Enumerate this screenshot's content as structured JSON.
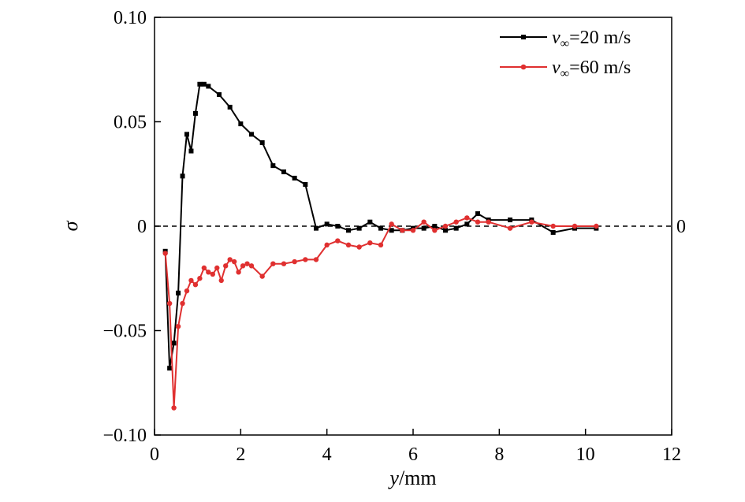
{
  "chart_data": {
    "type": "line",
    "xlabel_var": "y",
    "xlabel_unit": "/mm",
    "ylabel": "σ",
    "xlim": [
      0,
      12
    ],
    "ylim": [
      -0.1,
      0.1
    ],
    "x_ticks": [
      0,
      2,
      4,
      6,
      8,
      10,
      12
    ],
    "x_tick_labels": [
      "0",
      "2",
      "4",
      "6",
      "8",
      "10",
      "12"
    ],
    "y_ticks": [
      -0.1,
      -0.05,
      0,
      0.05,
      0.1
    ],
    "y_tick_labels": [
      "−0.10",
      "−0.05",
      "0",
      "0.05",
      "0.10"
    ],
    "right_tick_label": "0",
    "reference_line": {
      "y": 0,
      "style": "dashed"
    },
    "legend": {
      "position": "top-right"
    },
    "series": [
      {
        "name_var": "v",
        "name_sub": "∞",
        "name_rest": "=20 m/s",
        "color": "#000000",
        "marker": "square",
        "x": [
          0.25,
          0.35,
          0.45,
          0.55,
          0.65,
          0.75,
          0.85,
          0.95,
          1.05,
          1.15,
          1.25,
          1.5,
          1.75,
          2.0,
          2.25,
          2.5,
          2.75,
          3.0,
          3.25,
          3.5,
          3.75,
          4.0,
          4.25,
          4.5,
          4.75,
          5.0,
          5.25,
          5.5,
          5.75,
          6.0,
          6.25,
          6.5,
          6.75,
          7.0,
          7.25,
          7.5,
          7.75,
          8.25,
          8.75,
          9.25,
          9.75,
          10.25
        ],
        "y": [
          -0.012,
          -0.068,
          -0.056,
          -0.032,
          0.024,
          0.044,
          0.036,
          0.054,
          0.068,
          0.068,
          0.067,
          0.063,
          0.057,
          0.049,
          0.044,
          0.04,
          0.029,
          0.026,
          0.023,
          0.02,
          -0.001,
          0.001,
          0.0,
          -0.002,
          -0.001,
          0.002,
          -0.001,
          -0.002,
          -0.002,
          -0.001,
          -0.001,
          0.0,
          -0.002,
          -0.001,
          0.001,
          0.006,
          0.003,
          0.003,
          0.003,
          -0.003,
          -0.001,
          -0.001
        ]
      },
      {
        "name_var": "v",
        "name_sub": "∞",
        "name_rest": "=60 m/s",
        "color": "#e03030",
        "marker": "circle",
        "x": [
          0.25,
          0.35,
          0.45,
          0.55,
          0.65,
          0.75,
          0.85,
          0.95,
          1.05,
          1.15,
          1.25,
          1.35,
          1.45,
          1.55,
          1.65,
          1.75,
          1.85,
          1.95,
          2.05,
          2.15,
          2.25,
          2.5,
          2.75,
          3.0,
          3.25,
          3.5,
          3.75,
          4.0,
          4.25,
          4.5,
          4.75,
          5.0,
          5.25,
          5.5,
          5.75,
          6.0,
          6.25,
          6.5,
          6.75,
          7.0,
          7.25,
          7.5,
          7.75,
          8.25,
          8.75,
          9.25,
          9.75,
          10.25
        ],
        "y": [
          -0.013,
          -0.037,
          -0.087,
          -0.048,
          -0.037,
          -0.031,
          -0.026,
          -0.028,
          -0.025,
          -0.02,
          -0.022,
          -0.023,
          -0.02,
          -0.026,
          -0.019,
          -0.016,
          -0.017,
          -0.022,
          -0.019,
          -0.018,
          -0.019,
          -0.024,
          -0.018,
          -0.018,
          -0.017,
          -0.016,
          -0.016,
          -0.009,
          -0.007,
          -0.009,
          -0.01,
          -0.008,
          -0.009,
          0.001,
          -0.002,
          -0.002,
          0.002,
          -0.002,
          0.0,
          0.002,
          0.004,
          0.002,
          0.002,
          -0.001,
          0.002,
          0.0,
          0.0,
          0.0
        ]
      }
    ]
  }
}
